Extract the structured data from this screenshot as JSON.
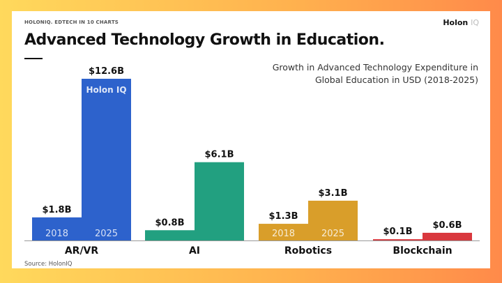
{
  "header": {
    "kicker": "HOLONIQ. EDTECH IN 10 CHARTS",
    "logo_main": "Holon",
    "logo_suffix": "IQ"
  },
  "source": "Source: HolonIQ",
  "bar_logo": "Holon IQ",
  "chart_data": {
    "type": "bar",
    "title": "Advanced Technology Growth in Education.",
    "subtitle": [
      "Growth in Advanced Technology Expenditure in",
      "Global Education in USD (2018-2025)"
    ],
    "categories": [
      "AR/VR",
      "AI",
      "Robotics",
      "Blockchain"
    ],
    "years": [
      "2018",
      "2025"
    ],
    "year_labels_shown_for": [
      "AR/VR",
      "Robotics"
    ],
    "unit": "USD billions",
    "values": [
      [
        1.8,
        12.6
      ],
      [
        0.8,
        6.1
      ],
      [
        1.3,
        3.1
      ],
      [
        0.1,
        0.6
      ]
    ],
    "data_labels": [
      [
        "$1.8B",
        "$12.6B"
      ],
      [
        "$0.8B",
        "$6.1B"
      ],
      [
        "$1.3B",
        "$3.1B"
      ],
      [
        "$0.1B",
        "$0.6B"
      ]
    ],
    "colors": [
      "#2d62cc",
      "#22a080",
      "#d99e2a",
      "#d9383e"
    ],
    "ylim": [
      0,
      12.6
    ],
    "grid": false
  }
}
